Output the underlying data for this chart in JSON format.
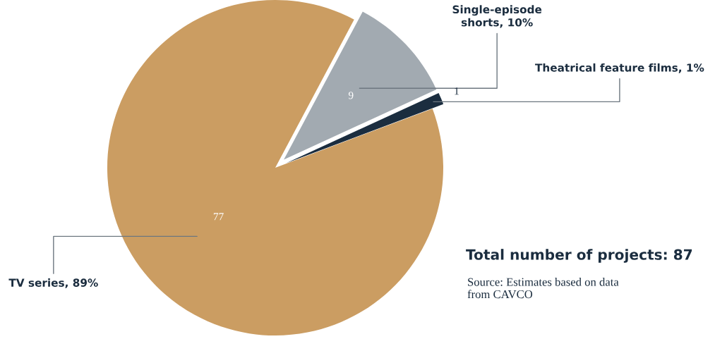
{
  "chart_data": {
    "type": "pie",
    "categories": [
      "Single-episode\nshorts, 10%",
      "Theatrical feature films, 1%",
      "TV series, 89%"
    ],
    "values": [
      9,
      1,
      77
    ],
    "colors": [
      "#a2aab1",
      "#1b2d3f",
      "#cb9d62"
    ],
    "data_labels": true,
    "legend": false,
    "annotations": [
      "Total number of projects: 87",
      "Source: Estimates based on data\nfrom CAVCO"
    ]
  }
}
